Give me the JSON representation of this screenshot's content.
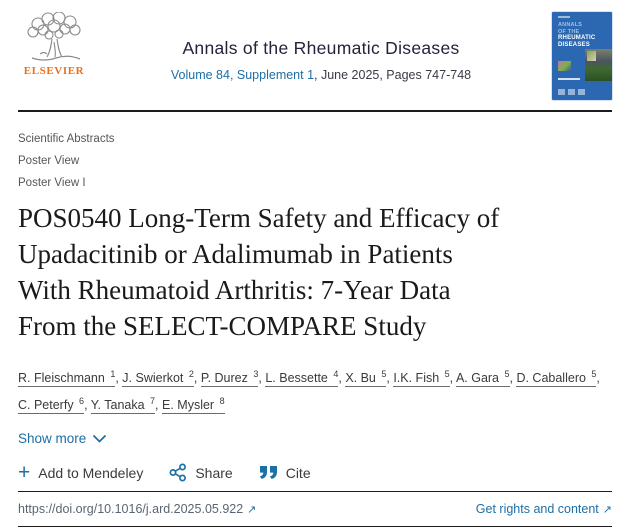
{
  "header": {
    "publisher": "ELSEVIER",
    "journal_title": "Annals of the Rheumatic Diseases",
    "volume_info_link": "Volume 84, Supplement 1",
    "volume_info_rest": ", June 2025, Pages 747-748",
    "cover_lines": [
      "ANNALS",
      "OF THE",
      "RHEUMATIC",
      "DISEASES"
    ]
  },
  "breadcrumbs": [
    "Scientific Abstracts",
    "Poster View",
    "Poster View I"
  ],
  "article": {
    "title": "POS0540 Long-Term Safety and Efficacy of Upadacitinib or Adalimumab in Patients With Rheumatoid Arthritis: 7-Year Data From the SELECT-COMPARE Study",
    "title_lines": [
      "POS0540 Long-Term Safety and Efficacy of",
      "Upadacitinib or Adalimumab in Patients",
      "With Rheumatoid Arthritis: 7-Year Data",
      "From the SELECT-COMPARE Study"
    ],
    "authors": [
      {
        "name": "R. Fleischmann",
        "sup": "1"
      },
      {
        "name": "J. Swierkot",
        "sup": "2"
      },
      {
        "name": "P. Durez",
        "sup": "3"
      },
      {
        "name": "L. Bessette",
        "sup": "4"
      },
      {
        "name": "X. Bu",
        "sup": "5"
      },
      {
        "name": "I.K. Fish",
        "sup": "5"
      },
      {
        "name": "A. Gara",
        "sup": "5"
      },
      {
        "name": "D. Caballero",
        "sup": "5"
      },
      {
        "name": "C. Peterfy",
        "sup": "6"
      },
      {
        "name": "Y. Tanaka",
        "sup": "7"
      },
      {
        "name": "E. Mysler",
        "sup": "8"
      }
    ],
    "show_more_label": "Show more"
  },
  "actions": {
    "add_to_mendeley": "Add to Mendeley",
    "share": "Share",
    "cite": "Cite"
  },
  "footer": {
    "doi": "https://doi.org/10.1016/j.ard.2025.05.922",
    "rights_link": "Get rights and content",
    "external_arrow": "↗"
  },
  "colors": {
    "link_blue": "#1d6fa5",
    "elsevier_orange": "#e9711c",
    "journal_navy": "#23233a",
    "cover_blue": "#2b68b1"
  }
}
